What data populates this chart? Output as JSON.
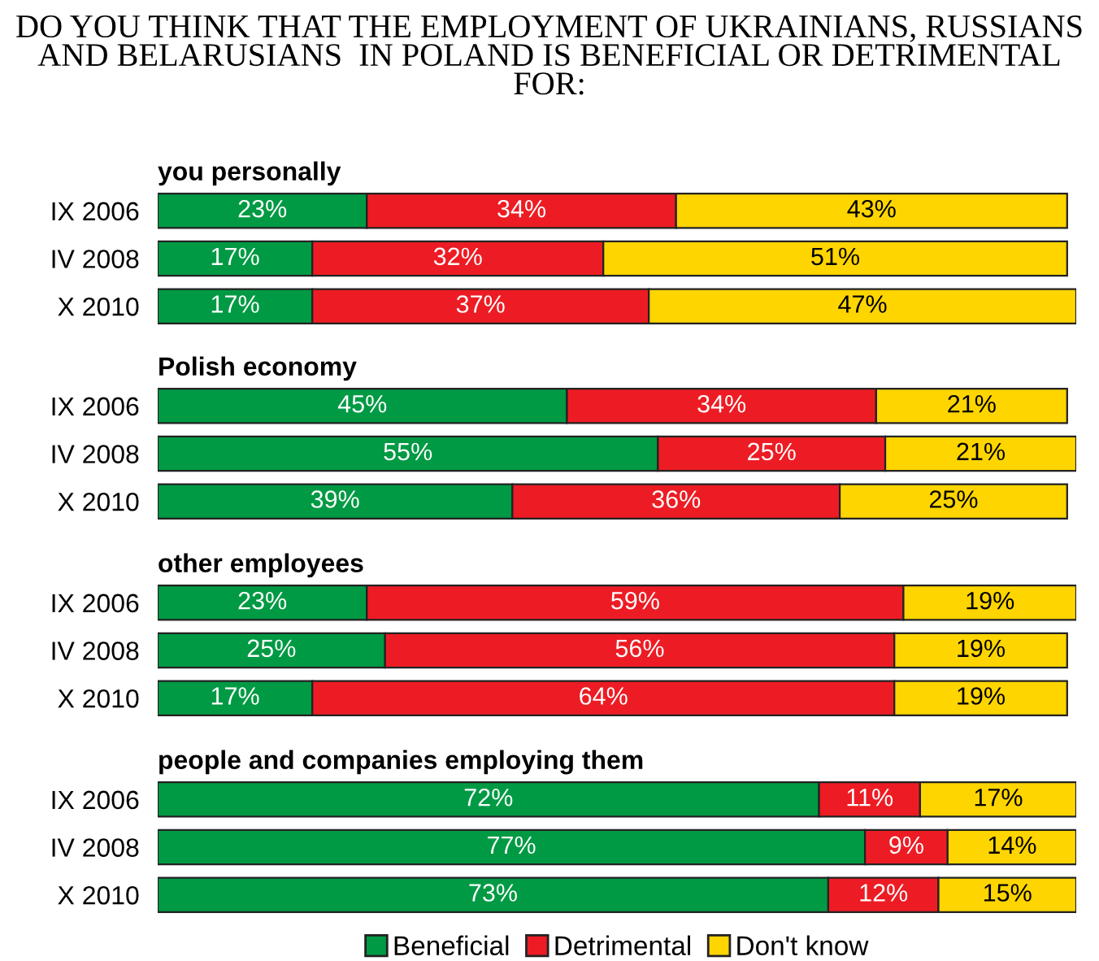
{
  "chart_data": [
    {
      "type": "bar",
      "orientation": "horizontal",
      "stacked": true,
      "title": "DO YOU THINK THAT THE EMPLOYMENT OF UKRAINIANS, RUSSIANS AND BELARUSIANS  IN POLAND IS BENEFICIAL OR DETRIMENTAL FOR:",
      "subtitle": "you personally",
      "categories": [
        "IX 2006",
        "IV 2008",
        "X 2010"
      ],
      "series": [
        {
          "color": "#009a44",
          "values": [
            23,
            17,
            17
          ],
          "value_labels": [
            "23%",
            "17%",
            "17%"
          ]
        },
        {
          "color": "#ed1c24",
          "values": [
            34,
            32,
            37
          ],
          "value_labels": [
            "34%",
            "32%",
            "37%"
          ]
        },
        {
          "color": "#ffd500",
          "values": [
            43,
            51,
            47
          ],
          "value_labels": [
            "43%",
            "51%",
            "47%"
          ]
        }
      ]
    },
    {
      "type": "bar",
      "orientation": "horizontal",
      "stacked": true,
      "title": "Polish economy",
      "categories": [
        "IX 2006",
        "IV 2008",
        "X 2010"
      ],
      "series": [
        {
          "color": "#009a44",
          "values": [
            45,
            55,
            39
          ],
          "value_labels": [
            "45%",
            "55%",
            "39%"
          ]
        },
        {
          "color": "#ed1c24",
          "values": [
            34,
            25,
            36
          ],
          "value_labels": [
            "34%",
            "25%",
            "36%"
          ]
        },
        {
          "color": "#ffd500",
          "values": [
            21,
            21,
            25
          ],
          "value_labels": [
            "21%",
            "21%",
            "25%"
          ]
        }
      ]
    },
    {
      "type": "bar",
      "orientation": "horizontal",
      "stacked": true,
      "title": "other employees",
      "categories": [
        "IX 2006",
        "IV 2008",
        "X 2010"
      ],
      "series": [
        {
          "color": "#009a44",
          "values": [
            23,
            25,
            17
          ],
          "value_labels": [
            "23%",
            "25%",
            "17%"
          ]
        },
        {
          "color": "#ed1c24",
          "values": [
            59,
            56,
            64
          ],
          "value_labels": [
            "59%",
            "56%",
            "64%"
          ]
        },
        {
          "color": "#ffd500",
          "values": [
            19,
            19,
            19
          ],
          "value_labels": [
            "19%",
            "19%",
            "19%"
          ]
        }
      ]
    },
    {
      "type": "bar",
      "orientation": "horizontal",
      "stacked": true,
      "title": "people and companies employing them",
      "legend": "bottom",
      "categories": [
        "IX 2006",
        "IV 2008",
        "X 2010"
      ],
      "series": [
        {
          "name": "Beneficial",
          "color": "#009a44",
          "values": [
            72,
            77,
            73
          ],
          "value_labels": [
            "72%",
            "77%",
            "73%"
          ]
        },
        {
          "name": "Detrimental",
          "color": "#ed1c24",
          "values": [
            11,
            9,
            12
          ],
          "value_labels": [
            "11%",
            "9%",
            "12%"
          ]
        },
        {
          "name": "Don't know",
          "color": "#ffd500",
          "values": [
            17,
            14,
            15
          ],
          "value_labels": [
            "17%",
            "14%",
            "15%"
          ]
        }
      ]
    }
  ]
}
